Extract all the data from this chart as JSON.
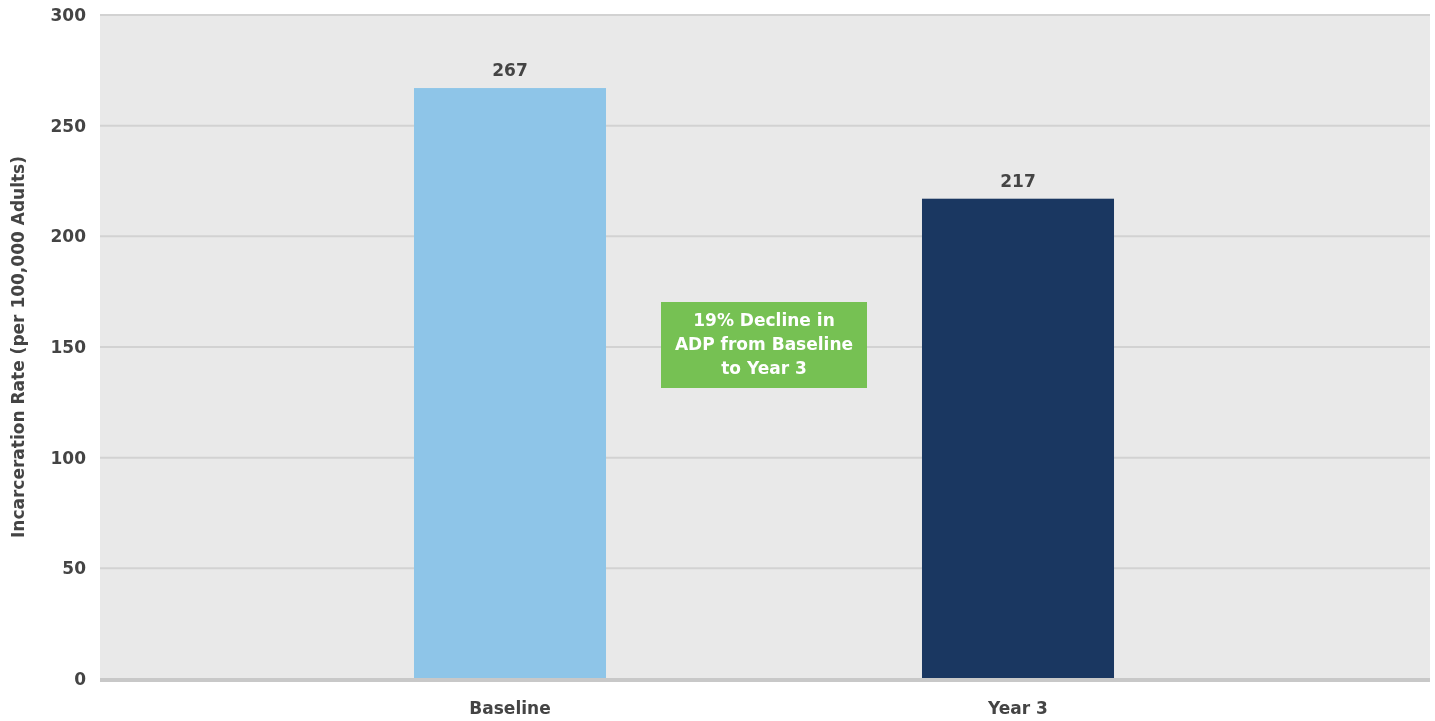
{
  "chart_data": {
    "type": "bar",
    "ylabel": "Incarceration Rate (per 100,000 Adults)",
    "categories": [
      "Baseline",
      "Year 3"
    ],
    "values": [
      267,
      217
    ],
    "colors": [
      "#8ec5e8",
      "#1a3761"
    ],
    "ylim": [
      0,
      300
    ],
    "yticks": [
      0,
      50,
      100,
      150,
      200,
      250,
      300
    ],
    "grid": "y",
    "data_labels": true,
    "annotations": [
      "19% Decline in ADP from Baseline to Year 3"
    ]
  }
}
